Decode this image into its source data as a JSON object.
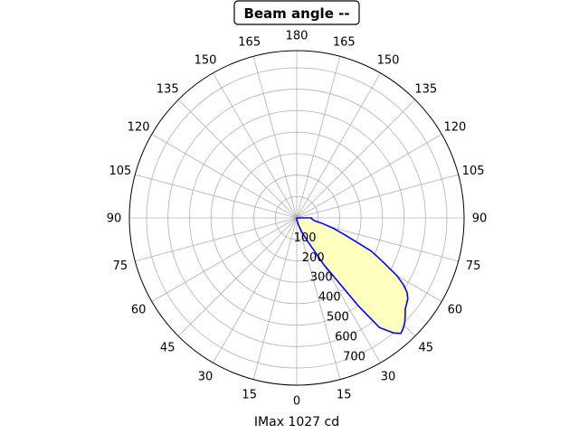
{
  "chart_data": {
    "type": "polar",
    "title": "Beam angle --",
    "xlabel": "IMax 1027 cd",
    "angle_tick_labels": [
      "0",
      "15",
      "30",
      "45",
      "60",
      "75",
      "90",
      "105",
      "120",
      "135",
      "150",
      "165",
      "180",
      "165",
      "150",
      "135",
      "120",
      "105",
      "90",
      "75",
      "60",
      "45",
      "30",
      "15"
    ],
    "radial_tick_labels": [
      "100",
      "200",
      "300",
      "400",
      "500",
      "600",
      "700"
    ],
    "radial_ticks": [
      100,
      200,
      300,
      400,
      500,
      600,
      700
    ],
    "rlim": [
      0,
      780
    ],
    "grid": true,
    "series": [
      {
        "color": "#0000ff",
        "fill": "#ffffc0",
        "theta_deg": [
          0,
          5,
          10,
          15,
          20,
          25,
          30,
          35,
          37,
          40,
          42,
          44,
          46,
          48,
          50,
          52,
          54,
          56,
          58,
          60,
          63,
          66,
          70,
          74,
          78,
          80,
          82,
          84,
          86,
          88,
          90
        ],
        "r": [
          0,
          10,
          20,
          40,
          70,
          120,
          250,
          500,
          640,
          700,
          725,
          715,
          700,
          680,
          660,
          650,
          640,
          620,
          585,
          540,
          450,
          380,
          250,
          180,
          120,
          90,
          80,
          75,
          70,
          70,
          70
        ]
      }
    ]
  }
}
